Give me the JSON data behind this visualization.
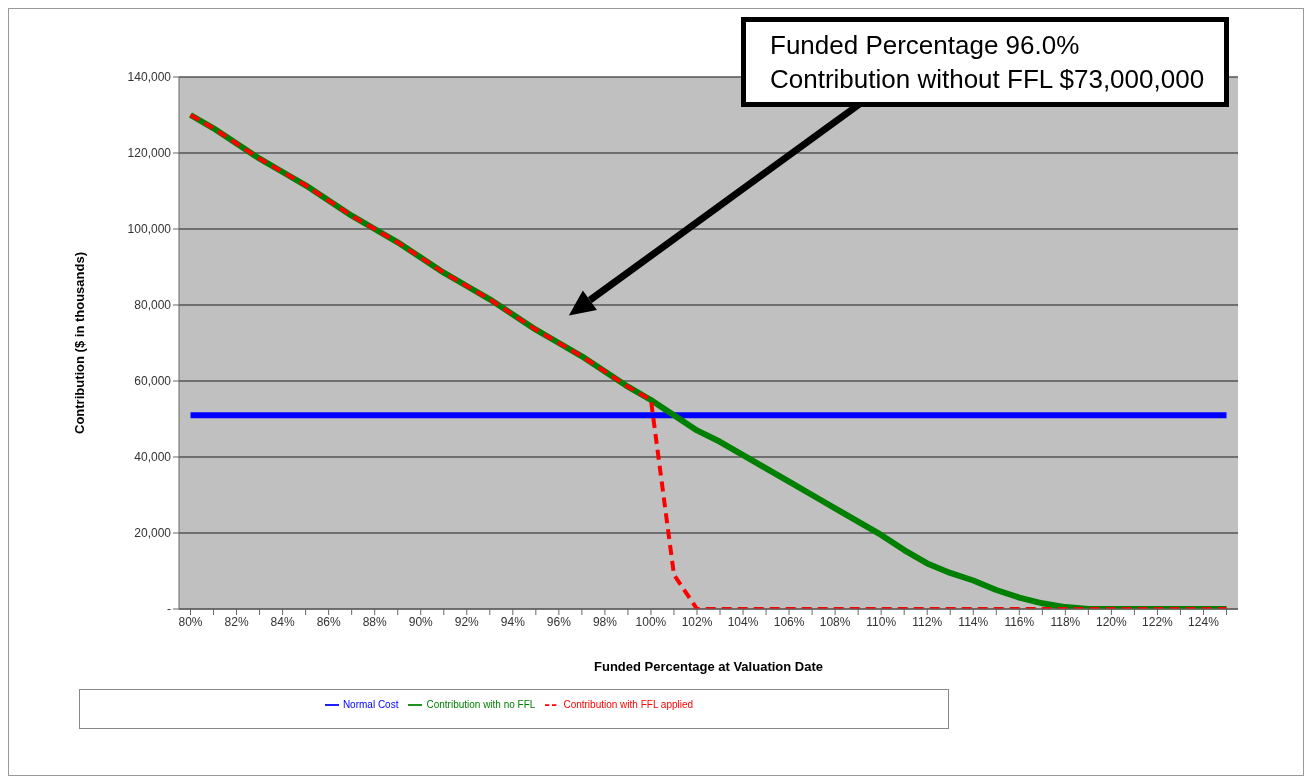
{
  "chart_data": {
    "type": "line",
    "xlabel": "Funded Percentage at Valuation Date",
    "ylabel": "Contribution  ($ in thousands)",
    "categories": [
      "80%",
      null,
      "82%",
      null,
      "84%",
      null,
      "86%",
      null,
      "88%",
      null,
      "90%",
      null,
      "92%",
      null,
      "94%",
      null,
      "96%",
      null,
      "98%",
      null,
      "100%",
      null,
      "102%",
      null,
      "104%",
      null,
      "106%",
      null,
      "108%",
      null,
      "110%",
      null,
      "112%",
      null,
      "114%",
      null,
      "116%",
      null,
      "118%",
      null,
      "120%",
      null,
      "122%",
      null,
      "124%",
      null
    ],
    "series": [
      {
        "name": "Normal Cost",
        "color": "#0000ff",
        "line_style": "solid",
        "values": [
          51000,
          51000,
          51000,
          51000,
          51000,
          51000,
          51000,
          51000,
          51000,
          51000,
          51000,
          51000,
          51000,
          51000,
          51000,
          51000,
          51000,
          51000,
          51000,
          51000,
          51000,
          51000,
          51000,
          51000,
          51000,
          51000,
          51000,
          51000,
          51000,
          51000,
          51000,
          51000,
          51000,
          51000,
          51000,
          51000,
          51000,
          51000,
          51000,
          51000,
          51000,
          51000,
          51000,
          51000,
          51000,
          51000
        ]
      },
      {
        "name": "Contribution with no FFL",
        "color": "#008000",
        "line_style": "solid",
        "values": [
          130000,
          126500,
          122500,
          118500,
          115000,
          111500,
          107500,
          103500,
          100000,
          96500,
          92500,
          88500,
          85000,
          81500,
          77500,
          73500,
          70000,
          66500,
          62500,
          58500,
          55000,
          51000,
          47000,
          44000,
          40500,
          37000,
          33500,
          30000,
          26500,
          23000,
          19500,
          15500,
          12000,
          9500,
          7500,
          5000,
          3000,
          1500,
          500,
          0,
          0,
          0,
          0,
          0,
          0,
          0
        ]
      },
      {
        "name": "Contribution with FFL applied",
        "color": "#ff0000",
        "line_style": "dashed",
        "values": [
          130000,
          126500,
          122500,
          118500,
          115000,
          111500,
          107500,
          103500,
          100000,
          96500,
          92500,
          88500,
          85000,
          81500,
          77500,
          73500,
          70000,
          66500,
          62500,
          58500,
          55000,
          9000,
          0,
          0,
          0,
          0,
          0,
          0,
          0,
          0,
          0,
          0,
          0,
          0,
          0,
          0,
          0,
          0,
          0,
          0,
          0,
          0,
          0,
          0,
          0,
          0
        ]
      }
    ],
    "ylim": [
      0,
      140000
    ],
    "yticks": [
      {
        "value": 0,
        "label": "-"
      },
      {
        "value": 20000,
        "label": "20,000"
      },
      {
        "value": 40000,
        "label": "40,000"
      },
      {
        "value": 60000,
        "label": "60,000"
      },
      {
        "value": 80000,
        "label": "80,000"
      },
      {
        "value": 100000,
        "label": "100,000"
      },
      {
        "value": 120000,
        "label": "120,000"
      },
      {
        "value": 140000,
        "label": "140,000"
      }
    ],
    "grid": "y",
    "legend": "bottom",
    "marker": "none",
    "annotations": [
      "Funded Percentage 96.0%\nContribution without FFL $73,000,000"
    ]
  }
}
